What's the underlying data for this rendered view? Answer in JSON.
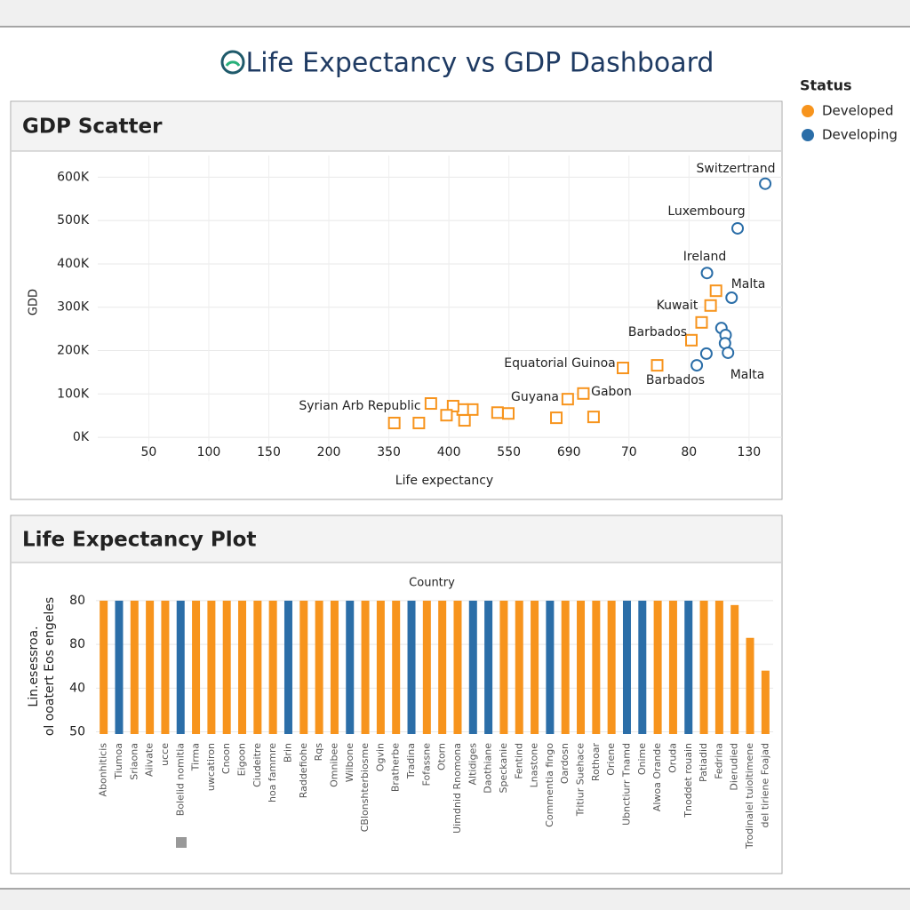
{
  "title": "Life Expectancy vs GDP Dashboard",
  "legend": {
    "title": "Status",
    "corner": "top-right"
  },
  "chart_data": [
    {
      "type": "scatter",
      "title": "GDP Scatter",
      "xlabel": "Life expectancy",
      "ylabel": "GDD",
      "xlim": [
        0.15,
        11.55
      ],
      "xticks": [
        {
          "value": 1,
          "label": "50"
        },
        {
          "value": 2,
          "label": "100"
        },
        {
          "value": 3,
          "label": "150"
        },
        {
          "value": 4,
          "label": "200"
        },
        {
          "value": 5,
          "label": "350"
        },
        {
          "value": 6,
          "label": "400"
        },
        {
          "value": 7,
          "label": "550"
        },
        {
          "value": 8,
          "label": "690"
        },
        {
          "value": 9,
          "label": "70"
        },
        {
          "value": 10,
          "label": "80"
        },
        {
          "value": 11,
          "label": "130"
        }
      ],
      "ylim": [
        -6000,
        650000
      ],
      "yticks": [
        {
          "value": 0,
          "label": "0K"
        },
        {
          "value": 100000,
          "label": "100K"
        },
        {
          "value": 200000,
          "label": "200K"
        },
        {
          "value": 300000,
          "label": "300K"
        },
        {
          "value": 400000,
          "label": "400K"
        },
        {
          "value": 500000,
          "label": "500K"
        },
        {
          "value": 600000,
          "label": "600K"
        }
      ],
      "grid": true,
      "series": [
        {
          "name": "Developed",
          "color": "#f7941d",
          "marker": "square",
          "x": [
            10.45,
            10.36,
            10.21,
            10.04,
            9.47,
            8.9,
            8.24,
            7.98,
            8.41,
            7.79,
            6.99,
            6.81,
            6.39,
            6.23,
            6.07,
            5.7,
            5.96,
            6.26,
            5.09,
            5.5
          ],
          "values": [
            338000,
            304000,
            265000,
            224000,
            166000,
            160000,
            101000,
            88000,
            47000,
            45000,
            55000,
            57000,
            64000,
            64000,
            72000,
            78000,
            51000,
            39000,
            33000,
            33000
          ]
        },
        {
          "name": "Developing",
          "color": "#2b6ea8",
          "marker": "circle",
          "x": [
            11.27,
            10.81,
            10.3,
            10.71,
            10.54,
            10.61,
            10.6,
            10.29,
            10.65,
            10.13
          ],
          "values": [
            585000,
            482000,
            379000,
            322000,
            252000,
            236000,
            217000,
            193000,
            195000,
            166000
          ]
        }
      ],
      "annotations": [
        "Switzertrand",
        "Luxembourg",
        "Ireland",
        "Malta",
        "Kuwait",
        "Barbados",
        "Equatorial Guinoa",
        "Barbados",
        "Malta",
        "Gabon",
        "Guyana",
        "Syrian Arb Republic"
      ]
    },
    {
      "type": "bar",
      "title": "Life Expectancy Plot",
      "xlabel": "Country",
      "ylabel": [
        "Lin.esessroa.",
        "ol ooatert Eos engeles"
      ],
      "ylim": [
        19,
        82
      ],
      "yticks": [
        80,
        {
          "value": 60,
          "label": "80"
        },
        40,
        {
          "value": 20,
          "label": "50"
        }
      ],
      "grid": true,
      "categories": [
        "Abonhiticis",
        "Tiumoa",
        "Sriaona",
        "Aiivate",
        "ucce",
        "Bolelid nomitia",
        "Tirma",
        "uwcatiron",
        "Cnoon",
        "Eigoon",
        "Ciudeitre",
        "hoa fammre",
        "Brin",
        "Raddefiohe",
        "Rqs",
        "Omnibee",
        "Wilbone",
        "CBlonshterbiosme",
        "Ogvin",
        "Bratherbe",
        "Tradina",
        "Fofassne",
        "Otorn",
        "Uimdnid Rnomona",
        "Altidiges",
        "Daothiane",
        "Speckanie",
        "Fentind",
        "Lnastone",
        "Commentia fingo",
        "Oardosn",
        "Tritiur Suehace",
        "Rothoar",
        "Oriene",
        "Ubnctiurr Tnamd",
        "Onime",
        "Alwoa Orande",
        "Oruda",
        "Tnoddet rouain",
        "Patiadid",
        "Fedrina",
        "Dierudied",
        "Trodinalel tuioltimene",
        "del tiriene Foajad"
      ],
      "values": [
        80,
        80,
        80,
        80,
        80,
        80,
        80,
        80,
        80,
        80,
        80,
        80,
        80,
        80,
        80,
        80,
        80,
        80,
        80,
        80,
        80,
        80,
        80,
        80,
        80,
        80,
        80,
        80,
        80,
        80,
        80,
        80,
        80,
        80,
        80,
        80,
        80,
        80,
        80,
        80,
        80,
        78,
        63,
        48
      ],
      "colors": [
        "#f7941d",
        "#2b6ea8",
        "#f7941d",
        "#f7941d",
        "#f7941d",
        "#2b6ea8",
        "#f7941d",
        "#f7941d",
        "#f7941d",
        "#f7941d",
        "#f7941d",
        "#f7941d",
        "#2b6ea8",
        "#f7941d",
        "#f7941d",
        "#f7941d",
        "#2b6ea8",
        "#f7941d",
        "#f7941d",
        "#f7941d",
        "#2b6ea8",
        "#f7941d",
        "#f7941d",
        "#f7941d",
        "#2b6ea8",
        "#2b6ea8",
        "#f7941d",
        "#f7941d",
        "#f7941d",
        "#2b6ea8",
        "#f7941d",
        "#f7941d",
        "#f7941d",
        "#f7941d",
        "#2b6ea8",
        "#2b6ea8",
        "#f7941d",
        "#f7941d",
        "#2b6ea8",
        "#f7941d",
        "#f7941d",
        "#f7941d",
        "#f7941d",
        "#f7941d"
      ]
    }
  ]
}
